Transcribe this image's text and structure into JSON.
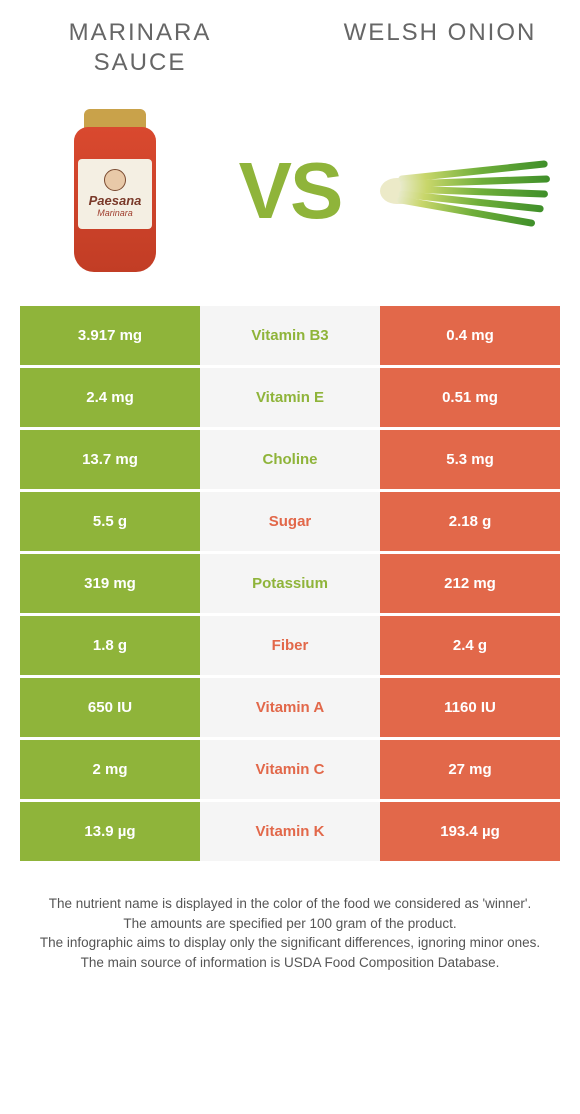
{
  "header": {
    "left_title": "MARINARA SAUCE",
    "right_title": "WELSH ONION"
  },
  "vs_text": "VS",
  "colors": {
    "left": "#8fb43a",
    "right": "#e2684a",
    "mid_bg": "#f5f5f5",
    "vs": "#8fb43a"
  },
  "jar_label": {
    "brand": "Paesana",
    "sub": "Marinara"
  },
  "rows": [
    {
      "left": "3.917 mg",
      "mid": "Vitamin B3",
      "right": "0.4 mg",
      "winner": "left"
    },
    {
      "left": "2.4 mg",
      "mid": "Vitamin E",
      "right": "0.51 mg",
      "winner": "left"
    },
    {
      "left": "13.7 mg",
      "mid": "Choline",
      "right": "5.3 mg",
      "winner": "left"
    },
    {
      "left": "5.5 g",
      "mid": "Sugar",
      "right": "2.18 g",
      "winner": "right"
    },
    {
      "left": "319 mg",
      "mid": "Potassium",
      "right": "212 mg",
      "winner": "left"
    },
    {
      "left": "1.8 g",
      "mid": "Fiber",
      "right": "2.4 g",
      "winner": "right"
    },
    {
      "left": "650 IU",
      "mid": "Vitamin A",
      "right": "1160 IU",
      "winner": "right"
    },
    {
      "left": "2 mg",
      "mid": "Vitamin C",
      "right": "27 mg",
      "winner": "right"
    },
    {
      "left": "13.9 µg",
      "mid": "Vitamin K",
      "right": "193.4 µg",
      "winner": "right"
    }
  ],
  "footer": {
    "line1": "The nutrient name is displayed in the color of the food we considered as 'winner'.",
    "line2": "The amounts are specified per 100 gram of the product.",
    "line3": "The infographic aims to display only the significant differences, ignoring minor ones.",
    "line4": "The main source of information is USDA Food Composition Database."
  }
}
